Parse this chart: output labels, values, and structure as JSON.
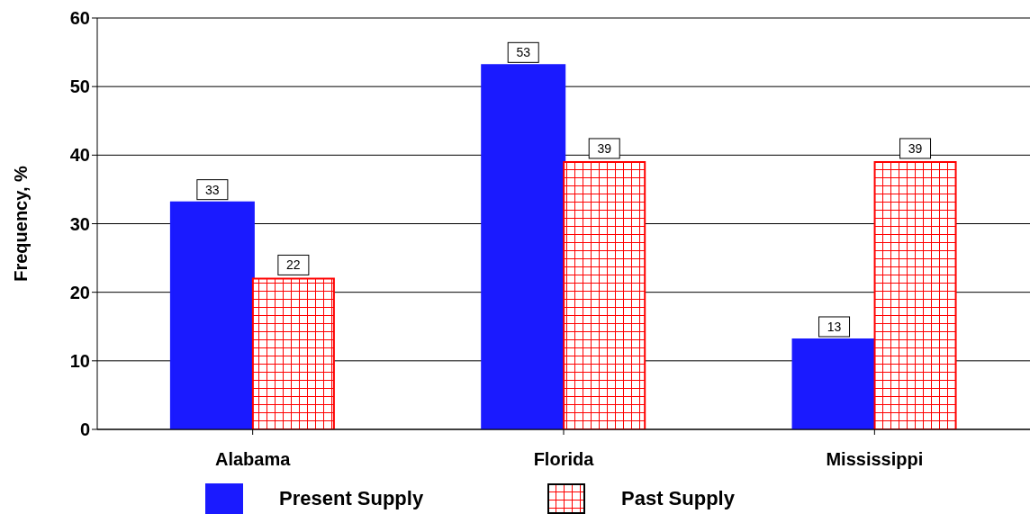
{
  "chart_data": {
    "type": "bar",
    "ylabel": "Frequency, %",
    "categories": [
      "Alabama",
      "Florida",
      "Mississippi"
    ],
    "series": [
      {
        "name": "Present Supply",
        "color": "#1a1aff",
        "values": [
          33,
          53,
          13
        ]
      },
      {
        "name": "Past Supply",
        "color": "#ff0000",
        "values": [
          22,
          39,
          39
        ]
      }
    ],
    "ylim": [
      0,
      60
    ],
    "yticks": [
      0,
      10,
      20,
      30,
      40,
      50,
      60
    ],
    "grid": "y",
    "legend": "bottom",
    "data_labels": true
  }
}
